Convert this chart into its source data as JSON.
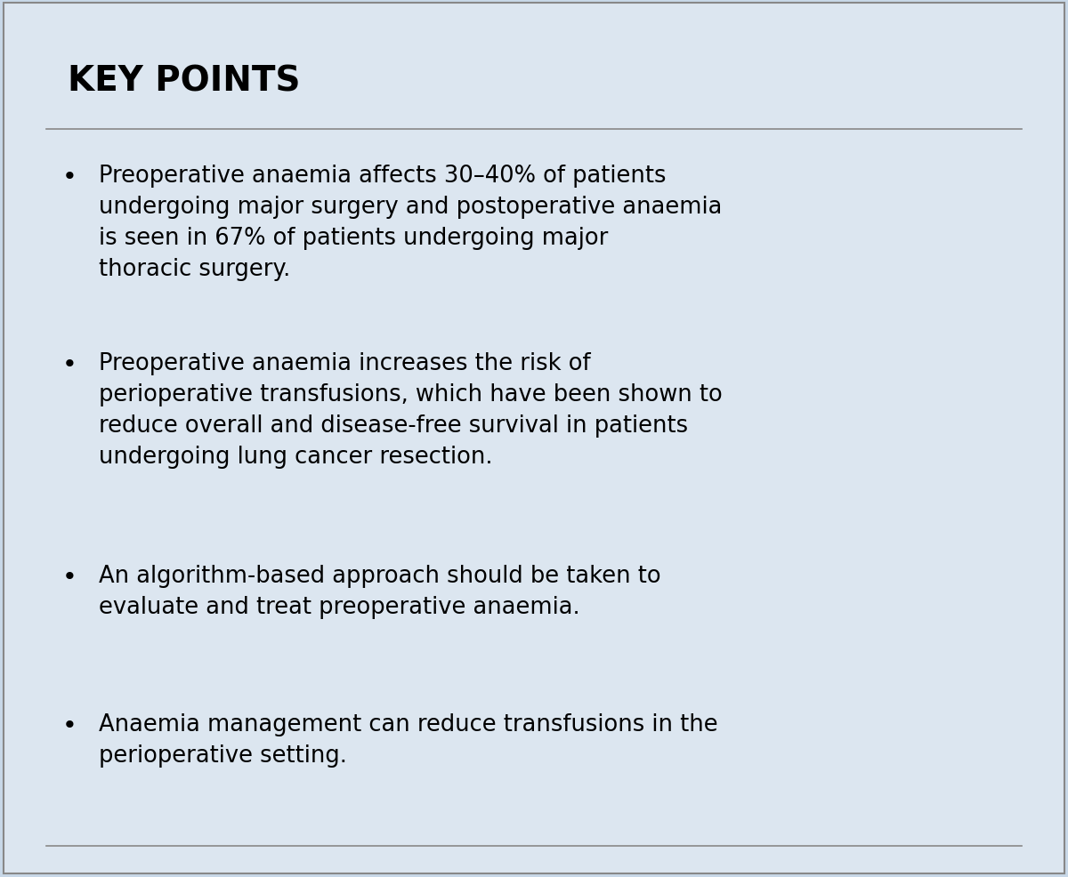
{
  "title": "KEY POINTS",
  "background_color": "#dce6f0",
  "outer_background": "#c8d8e8",
  "border_color": "#888888",
  "title_color": "#000000",
  "title_fontsize": 28,
  "text_fontsize": 18.5,
  "bullet_points": [
    "Preoperative anaemia affects 30–40% of patients\nundergoing major surgery and postoperative anaemia\nis seen in 67% of patients undergoing major\nthoracic surgery.",
    "Preoperative anaemia increases the risk of\nperioperative transfusions, which have been shown to\nreduce overall and disease-free survival in patients\nundergoing lung cancer resection.",
    "An algorithm-based approach should be taken to\nevaluate and treat preoperative anaemia.",
    "Anaemia management can reduce transfusions in the\nperioperative setting."
  ],
  "figsize": [
    12.0,
    9.87
  ],
  "dpi": 100
}
